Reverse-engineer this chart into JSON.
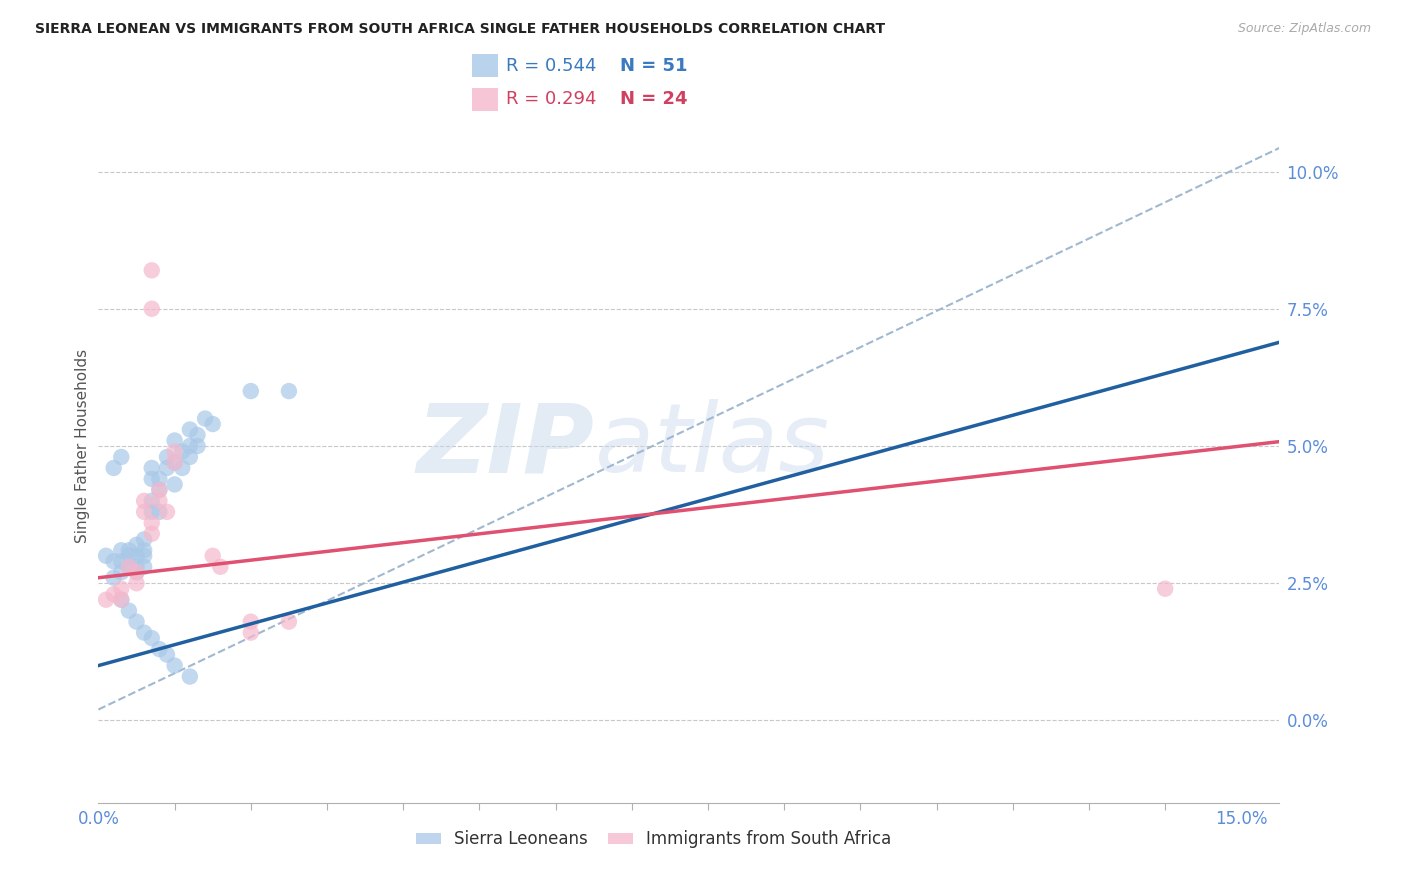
{
  "title": "SIERRA LEONEAN VS IMMIGRANTS FROM SOUTH AFRICA SINGLE FATHER HOUSEHOLDS CORRELATION CHART",
  "source": "Source: ZipAtlas.com",
  "ylabel": "Single Father Households",
  "xlim": [
    0.0,
    0.155
  ],
  "ylim": [
    -0.015,
    0.115
  ],
  "ytick_vals": [
    0.0,
    0.025,
    0.05,
    0.075,
    0.1
  ],
  "xtick_vals": [
    0.0,
    0.15
  ],
  "xtick_minor_vals": [
    0.01,
    0.02,
    0.03,
    0.04,
    0.05,
    0.06,
    0.07,
    0.08,
    0.09,
    0.1,
    0.11,
    0.12,
    0.13,
    0.14
  ],
  "blue_R": 0.544,
  "blue_N": 51,
  "pink_R": 0.294,
  "pink_N": 24,
  "blue_color": "#a8c8e8",
  "pink_color": "#f5b8cc",
  "blue_line_color": "#2060a0",
  "pink_line_color": "#e05070",
  "dashed_line_color": "#a0b8d0",
  "blue_scatter": [
    [
      0.001,
      0.03
    ],
    [
      0.002,
      0.029
    ],
    [
      0.002,
      0.026
    ],
    [
      0.003,
      0.031
    ],
    [
      0.003,
      0.029
    ],
    [
      0.003,
      0.027
    ],
    [
      0.004,
      0.031
    ],
    [
      0.004,
      0.03
    ],
    [
      0.004,
      0.028
    ],
    [
      0.005,
      0.032
    ],
    [
      0.005,
      0.03
    ],
    [
      0.005,
      0.028
    ],
    [
      0.005,
      0.027
    ],
    [
      0.006,
      0.033
    ],
    [
      0.006,
      0.031
    ],
    [
      0.006,
      0.03
    ],
    [
      0.006,
      0.028
    ],
    [
      0.007,
      0.046
    ],
    [
      0.007,
      0.044
    ],
    [
      0.007,
      0.04
    ],
    [
      0.007,
      0.038
    ],
    [
      0.008,
      0.044
    ],
    [
      0.008,
      0.042
    ],
    [
      0.008,
      0.038
    ],
    [
      0.009,
      0.048
    ],
    [
      0.009,
      0.046
    ],
    [
      0.01,
      0.051
    ],
    [
      0.01,
      0.047
    ],
    [
      0.01,
      0.043
    ],
    [
      0.011,
      0.049
    ],
    [
      0.011,
      0.046
    ],
    [
      0.012,
      0.053
    ],
    [
      0.012,
      0.05
    ],
    [
      0.012,
      0.048
    ],
    [
      0.013,
      0.052
    ],
    [
      0.013,
      0.05
    ],
    [
      0.014,
      0.055
    ],
    [
      0.015,
      0.054
    ],
    [
      0.02,
      0.06
    ],
    [
      0.025,
      0.06
    ],
    [
      0.002,
      0.046
    ],
    [
      0.003,
      0.048
    ],
    [
      0.003,
      0.022
    ],
    [
      0.004,
      0.02
    ],
    [
      0.005,
      0.018
    ],
    [
      0.006,
      0.016
    ],
    [
      0.007,
      0.015
    ],
    [
      0.008,
      0.013
    ],
    [
      0.009,
      0.012
    ],
    [
      0.01,
      0.01
    ],
    [
      0.012,
      0.008
    ]
  ],
  "pink_scatter": [
    [
      0.001,
      0.022
    ],
    [
      0.002,
      0.023
    ],
    [
      0.003,
      0.024
    ],
    [
      0.003,
      0.022
    ],
    [
      0.004,
      0.028
    ],
    [
      0.005,
      0.027
    ],
    [
      0.005,
      0.025
    ],
    [
      0.006,
      0.04
    ],
    [
      0.006,
      0.038
    ],
    [
      0.007,
      0.036
    ],
    [
      0.007,
      0.034
    ],
    [
      0.008,
      0.042
    ],
    [
      0.008,
      0.04
    ],
    [
      0.009,
      0.038
    ],
    [
      0.01,
      0.049
    ],
    [
      0.01,
      0.047
    ],
    [
      0.015,
      0.03
    ],
    [
      0.016,
      0.028
    ],
    [
      0.02,
      0.018
    ],
    [
      0.025,
      0.018
    ],
    [
      0.007,
      0.082
    ],
    [
      0.007,
      0.075
    ],
    [
      0.14,
      0.024
    ],
    [
      0.02,
      0.016
    ]
  ],
  "blue_reg_intercept": 0.01,
  "blue_reg_slope": 0.38,
  "pink_reg_intercept": 0.026,
  "pink_reg_slope": 0.16,
  "dash_reg_intercept": 0.002,
  "dash_reg_slope": 0.66
}
